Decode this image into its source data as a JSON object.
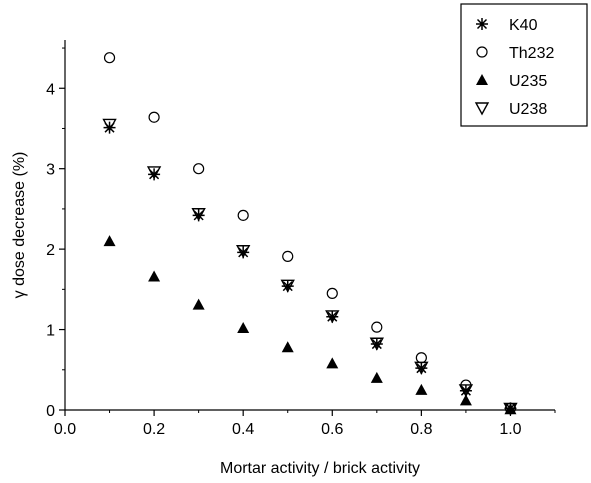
{
  "chart_data": {
    "type": "scatter",
    "xlabel": "Mortar activity / brick activity",
    "ylabel": "γ dose decrease (%)",
    "xlim": [
      0.0,
      1.1
    ],
    "ylim": [
      0,
      4.6
    ],
    "x_ticks": [
      "0.0",
      "0.2",
      "0.4",
      "0.6",
      "0.8",
      "1.0"
    ],
    "y_ticks": [
      "0",
      "1",
      "2",
      "3",
      "4"
    ],
    "x": [
      0.1,
      0.2,
      0.3,
      0.4,
      0.5,
      0.6,
      0.7,
      0.8,
      0.9,
      1.0
    ],
    "series": [
      {
        "name": "K40",
        "marker": "asterisk",
        "values": [
          3.51,
          2.93,
          2.42,
          1.96,
          1.54,
          1.16,
          0.82,
          0.52,
          0.24,
          0.02
        ]
      },
      {
        "name": "Th232",
        "marker": "open-circle",
        "values": [
          4.38,
          3.64,
          3.0,
          2.42,
          1.91,
          1.45,
          1.03,
          0.65,
          0.31,
          0.02
        ]
      },
      {
        "name": "U235",
        "marker": "filled-triangle-up",
        "values": [
          2.1,
          1.66,
          1.31,
          1.02,
          0.78,
          0.58,
          0.4,
          0.25,
          0.12,
          0.01
        ]
      },
      {
        "name": "U238",
        "marker": "open-triangle-down",
        "values": [
          3.55,
          2.96,
          2.44,
          1.98,
          1.55,
          1.17,
          0.83,
          0.53,
          0.25,
          0.02
        ]
      }
    ],
    "legend_position": "top-right",
    "grid": false
  }
}
